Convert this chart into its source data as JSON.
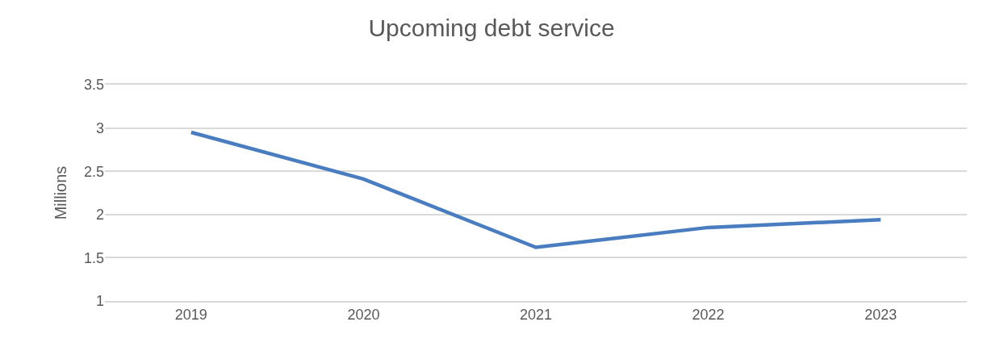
{
  "chart_data": {
    "type": "line",
    "title": "Upcoming debt service",
    "ylabel": "Millions",
    "categories": [
      "2019",
      "2020",
      "2021",
      "2022",
      "2023"
    ],
    "series": [
      {
        "color": "#4a7dbf",
        "values": [
          2.95,
          2.41,
          1.62,
          1.85,
          1.94
        ]
      }
    ],
    "ylim": [
      1,
      3.5
    ],
    "yticks": [
      1,
      1.5,
      2,
      2.5,
      3,
      3.5
    ],
    "grid": "y",
    "legend": false,
    "marker": "none",
    "line_style": "solid"
  }
}
